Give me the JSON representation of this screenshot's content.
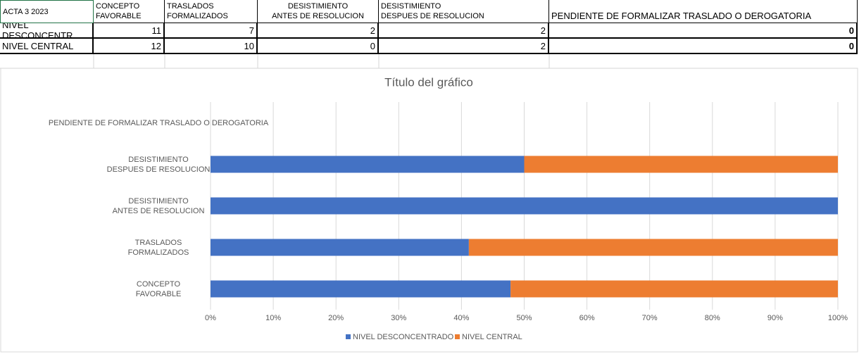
{
  "table": {
    "header": [
      "ACTA 3 2023",
      "CONCEPTO\nFAVORABLE",
      "TRASLADOS\nFORMALIZADOS",
      "DESISTIMIENTO\nANTES DE RESOLUCION",
      "DESISTIMIENTO\nDESPUES DE RESOLUCION",
      "PENDIENTE DE FORMALIZAR TRASLADO O DEROGATORIA"
    ],
    "rows": [
      [
        "NIVEL DESCONCENTR",
        11,
        7,
        2,
        2,
        0
      ],
      [
        "NIVEL CENTRAL",
        12,
        10,
        0,
        2,
        0
      ]
    ]
  },
  "chart_data": {
    "type": "bar",
    "orientation": "horizontal",
    "stacked": "percent",
    "title": "Título del gráfico",
    "categories": [
      "CONCEPTO\nFAVORABLE",
      "TRASLADOS\nFORMALIZADOS",
      "DESISTIMIENTO\nANTES DE RESOLUCION",
      "DESISTIMIENTO\nDESPUES DE RESOLUCION",
      "PENDIENTE DE FORMALIZAR TRASLADO O DEROGATORIA"
    ],
    "series": [
      {
        "name": "NIVEL DESCONCENTRADO",
        "color": "#4472c4",
        "values": [
          11,
          7,
          2,
          2,
          0
        ]
      },
      {
        "name": "NIVEL CENTRAL",
        "color": "#ed7d31",
        "values": [
          12,
          10,
          0,
          2,
          0
        ]
      }
    ],
    "xlim": [
      0,
      100
    ],
    "xticks": [
      {
        "value": 0,
        "label": "0%"
      },
      {
        "value": 10,
        "label": "10%"
      },
      {
        "value": 20,
        "label": "20%"
      },
      {
        "value": 30,
        "label": "30%"
      },
      {
        "value": 40,
        "label": "40%"
      },
      {
        "value": 50,
        "label": "50%"
      },
      {
        "value": 60,
        "label": "60%"
      },
      {
        "value": 70,
        "label": "70%"
      },
      {
        "value": 80,
        "label": "80%"
      },
      {
        "value": 90,
        "label": "90%"
      },
      {
        "value": 100,
        "label": "100%"
      }
    ],
    "grid": true,
    "legend": "bottom"
  }
}
